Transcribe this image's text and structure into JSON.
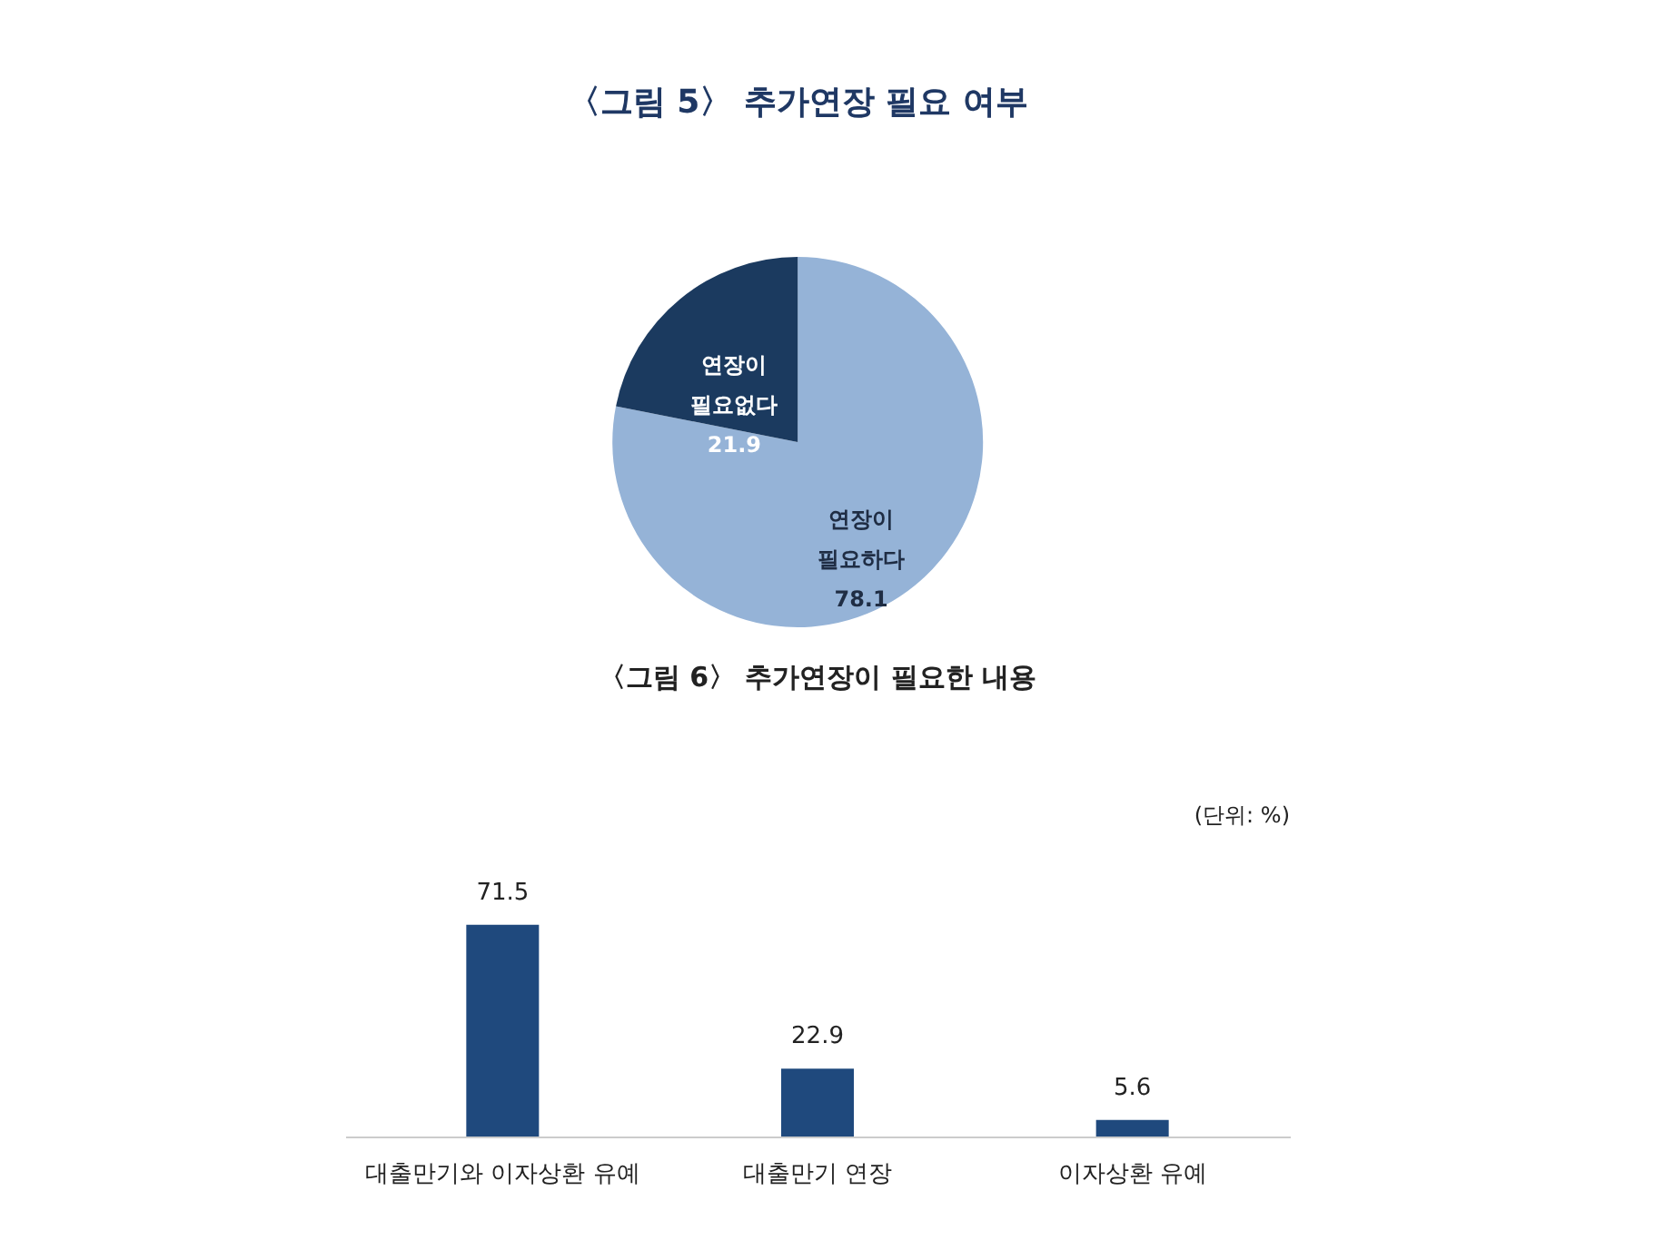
{
  "chart_data": [
    {
      "type": "pie",
      "title": "〈그림 5〉 추가연장 필요 여부",
      "categories": [
        "연장이 필요하다",
        "연장이 필요없다"
      ],
      "values": [
        78.1,
        21.9
      ],
      "colors": [
        "#95b3d7",
        "#1b3a5f"
      ],
      "data_labels": true
    },
    {
      "type": "bar",
      "title": "〈그림 6〉 추가연장이 필요한 내용",
      "annotations": [
        "(단위: %)"
      ],
      "categories": [
        "대출만기와 이자상환 유예",
        "대출만기 연장",
        "이자상환 유예"
      ],
      "values": [
        71.5,
        22.9,
        5.6
      ],
      "color": "#1f497d",
      "data_labels": true
    }
  ]
}
